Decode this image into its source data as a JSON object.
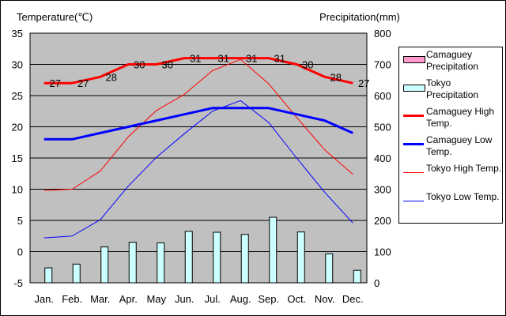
{
  "chart_data": {
    "type": "bar+line",
    "categories": [
      "Jan.",
      "Feb.",
      "Mar.",
      "Apr.",
      "May",
      "Jun.",
      "Jul.",
      "Aug.",
      "Sep.",
      "Oct.",
      "Nov.",
      "Dec."
    ],
    "y_left": {
      "label": "Temperature(℃)",
      "min": -5,
      "max": 35,
      "ticks": [
        -5,
        0,
        5,
        10,
        15,
        20,
        25,
        30,
        35
      ]
    },
    "y_right": {
      "label": "Precipitation(mm)",
      "min": 0,
      "max": 800,
      "ticks": [
        0,
        100,
        200,
        300,
        400,
        500,
        600,
        700,
        800
      ]
    },
    "grid": true,
    "legend_position": "right",
    "series": [
      {
        "name": "Camaguey Precipitation",
        "kind": "bar",
        "axis": "right",
        "values": [
          null,
          null,
          null,
          null,
          null,
          null,
          null,
          null,
          null,
          null,
          null,
          null
        ],
        "color": "#ff99cc"
      },
      {
        "name": "Tokyo Precipitation",
        "kind": "bar",
        "axis": "right",
        "values": [
          48,
          60,
          115,
          130,
          128,
          165,
          162,
          155,
          210,
          163,
          93,
          40
        ],
        "color": "#ccffff"
      },
      {
        "name": "Camaguey High Temp.",
        "kind": "line",
        "axis": "left",
        "values": [
          27,
          27,
          28,
          30,
          30,
          31,
          31,
          31,
          31,
          30,
          28,
          27
        ],
        "labels": [
          "27",
          "27",
          "28",
          "30",
          "30",
          "31",
          "31",
          "31",
          "31",
          "30",
          "28",
          "27"
        ],
        "color": "#ff0000",
        "width": 3
      },
      {
        "name": "Camaguey Low Temp.",
        "kind": "line",
        "axis": "left",
        "values": [
          18,
          18,
          19,
          20,
          21,
          22,
          23,
          23,
          23,
          22,
          21,
          19
        ],
        "color": "#0000ff",
        "width": 3
      },
      {
        "name": "Tokyo High Temp.",
        "kind": "line",
        "axis": "left",
        "values": [
          9.8,
          10,
          12.9,
          18.4,
          22.6,
          25.2,
          29,
          30.8,
          26.9,
          21.5,
          16.3,
          12.4
        ],
        "color": "#ff0000",
        "width": 1
      },
      {
        "name": "Tokyo Low Temp.",
        "kind": "line",
        "axis": "left",
        "values": [
          2.2,
          2.5,
          5.1,
          10.5,
          15.1,
          18.9,
          22.5,
          24.2,
          20.7,
          15,
          9.5,
          4.6
        ],
        "color": "#0000ff",
        "width": 1
      }
    ]
  },
  "legend": [
    {
      "label": "Camaguey Precipitation",
      "type": "box",
      "color": "#ff99cc"
    },
    {
      "label": "Tokyo Precipitation",
      "type": "box",
      "color": "#ccffff"
    },
    {
      "label": "Camaguey High Temp.",
      "type": "line",
      "color": "#ff0000",
      "width": 3
    },
    {
      "label": "Camaguey Low Temp.",
      "type": "line",
      "color": "#0000ff",
      "width": 3
    },
    {
      "label": "Tokyo High Temp.",
      "type": "line",
      "color": "#ff0000",
      "width": 1
    },
    {
      "label": "Tokyo Low Temp.",
      "type": "line",
      "color": "#0000ff",
      "width": 1
    }
  ],
  "colors": {
    "plot_bg": "#c0c0c0",
    "grid": "#000000",
    "frame": "#000000"
  }
}
